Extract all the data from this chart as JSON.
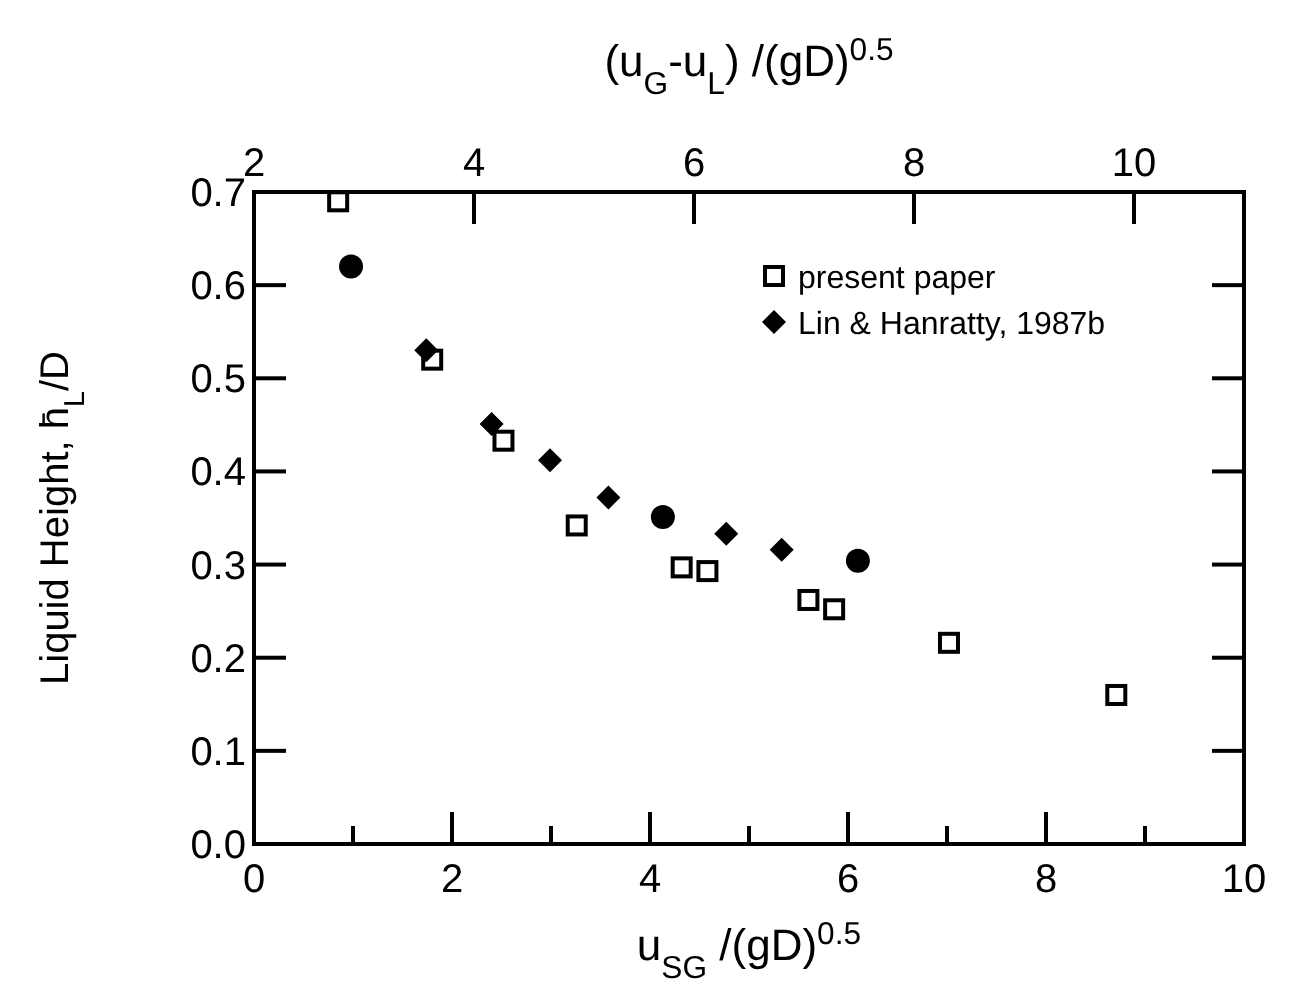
{
  "chart_data": {
    "type": "scatter",
    "xlabel": "u$_{SG}$ /(gD)$^{0.5}$",
    "ylabel": "Liquid Height, h̄$_{L}$/D",
    "x2label": "(u$_{G}$-u$_{L}$) /(gD)$^{0.5}$",
    "xlim": [
      0,
      10
    ],
    "xticks": [
      0,
      {
        "value": 1,
        "label": null
      },
      2,
      {
        "value": 3,
        "label": null
      },
      4,
      {
        "value": 5,
        "label": null
      },
      6,
      {
        "value": 7,
        "label": null
      },
      8,
      {
        "value": 9,
        "label": null
      },
      10
    ],
    "x2lim": [
      2,
      11
    ],
    "x2ticks": [
      2,
      4,
      6,
      8,
      10
    ],
    "ylim": [
      0,
      0.7
    ],
    "yticks": [
      {
        "value": 0,
        "label": "0.0"
      },
      0.1,
      0.2,
      0.3,
      0.4,
      0.5,
      0.6,
      0.7
    ],
    "legend": "top right",
    "series": [
      {
        "name": "present paper",
        "color": "#000000",
        "marker": "square",
        "x": [
          0.85,
          1.8,
          2.52,
          3.26,
          4.32,
          4.58,
          5.6,
          5.86,
          7.02,
          8.71
        ],
        "values": [
          0.69,
          0.52,
          0.433,
          0.342,
          0.297,
          0.293,
          0.262,
          0.252,
          0.216,
          0.16
        ]
      },
      {
        "name": "Lin & Hanratty, 1987b",
        "color": "#000000",
        "marker": "diamond",
        "x": [
          1.74,
          2.4,
          2.99,
          3.58,
          4.77,
          5.33
        ],
        "values": [
          0.53,
          0.451,
          0.412,
          0.372,
          0.333,
          0.316
        ]
      },
      {
        "color": "#000000",
        "marker": "circle",
        "x": [
          0.98,
          4.13,
          6.1
        ],
        "values": [
          0.62,
          0.351,
          0.304
        ]
      }
    ]
  }
}
